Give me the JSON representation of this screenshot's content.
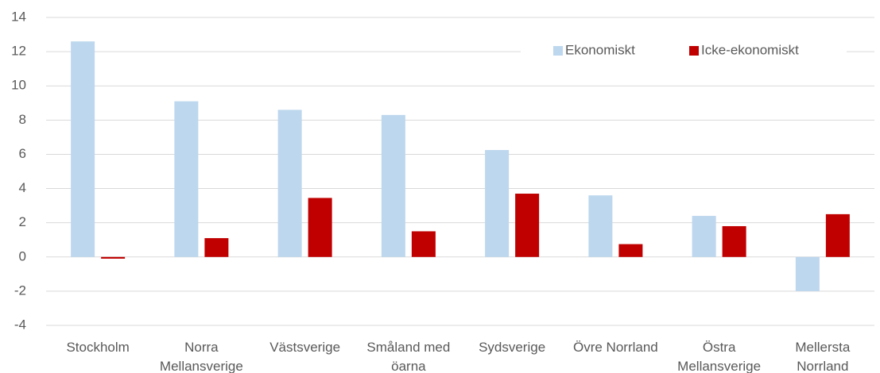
{
  "chart_data": {
    "type": "bar",
    "categories": [
      "Stockholm",
      "Norra Mellansverige",
      "Västsverige",
      "Småland med öarna",
      "Sydsverige",
      "Övre Norrland",
      "Östra Mellansverige",
      "Mellersta Norrland"
    ],
    "series": [
      {
        "name": "Ekonomiskt",
        "color": "#bdd7ee",
        "values": [
          12.6,
          9.1,
          8.6,
          8.3,
          6.25,
          3.6,
          2.4,
          -2.0
        ]
      },
      {
        "name": "Icke-ekonomiskt",
        "color": "#c00000",
        "values": [
          -0.1,
          1.1,
          3.45,
          1.5,
          3.7,
          0.75,
          1.8,
          2.5
        ]
      }
    ],
    "ylim": [
      -4,
      14
    ],
    "yticks": [
      -4,
      -2,
      0,
      2,
      4,
      6,
      8,
      10,
      12,
      14
    ],
    "grid": true,
    "legend": "top-right"
  }
}
